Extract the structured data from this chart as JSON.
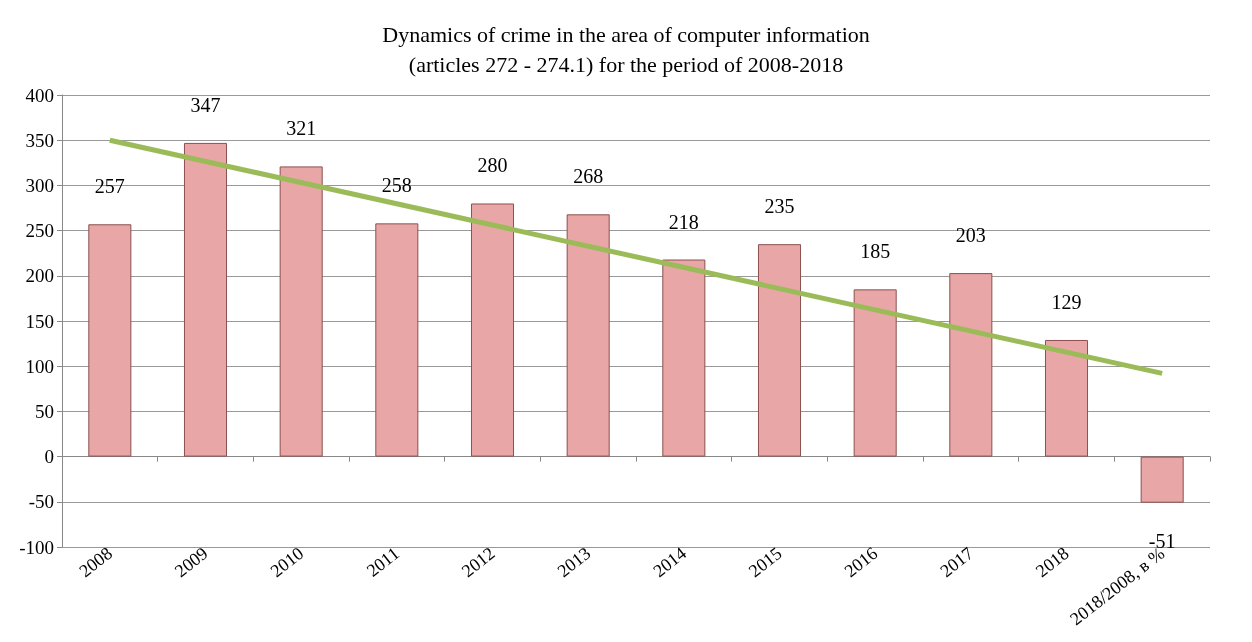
{
  "chart_data": {
    "type": "bar",
    "title": "Dynamics of crime in the area of computer information\n(articles 272 - 274.1) for the period of 2008-2018",
    "categories": [
      "2008",
      "2009",
      "2010",
      "2011",
      "2012",
      "2013",
      "2014",
      "2015",
      "2016",
      "2017",
      "2018",
      "2018/2008, в %"
    ],
    "series": [
      {
        "color": "#e8a6a6",
        "values": [
          257,
          347,
          321,
          258,
          280,
          268,
          218,
          235,
          185,
          203,
          129,
          -51
        ],
        "value_labels": [
          "257",
          "347",
          "321",
          "258",
          "280",
          "268",
          "218",
          "235",
          "185",
          "203",
          "129",
          "-51"
        ]
      },
      {
        "type": "line",
        "color": "#9bbb59",
        "values": [
          350,
          null,
          null,
          null,
          null,
          null,
          null,
          null,
          null,
          null,
          null,
          92
        ]
      }
    ],
    "ylim": [
      -100,
      400
    ],
    "yticks": [
      -100,
      -50,
      0,
      50,
      100,
      150,
      200,
      250,
      300,
      350,
      400
    ],
    "grid": "y",
    "marker": "none"
  }
}
